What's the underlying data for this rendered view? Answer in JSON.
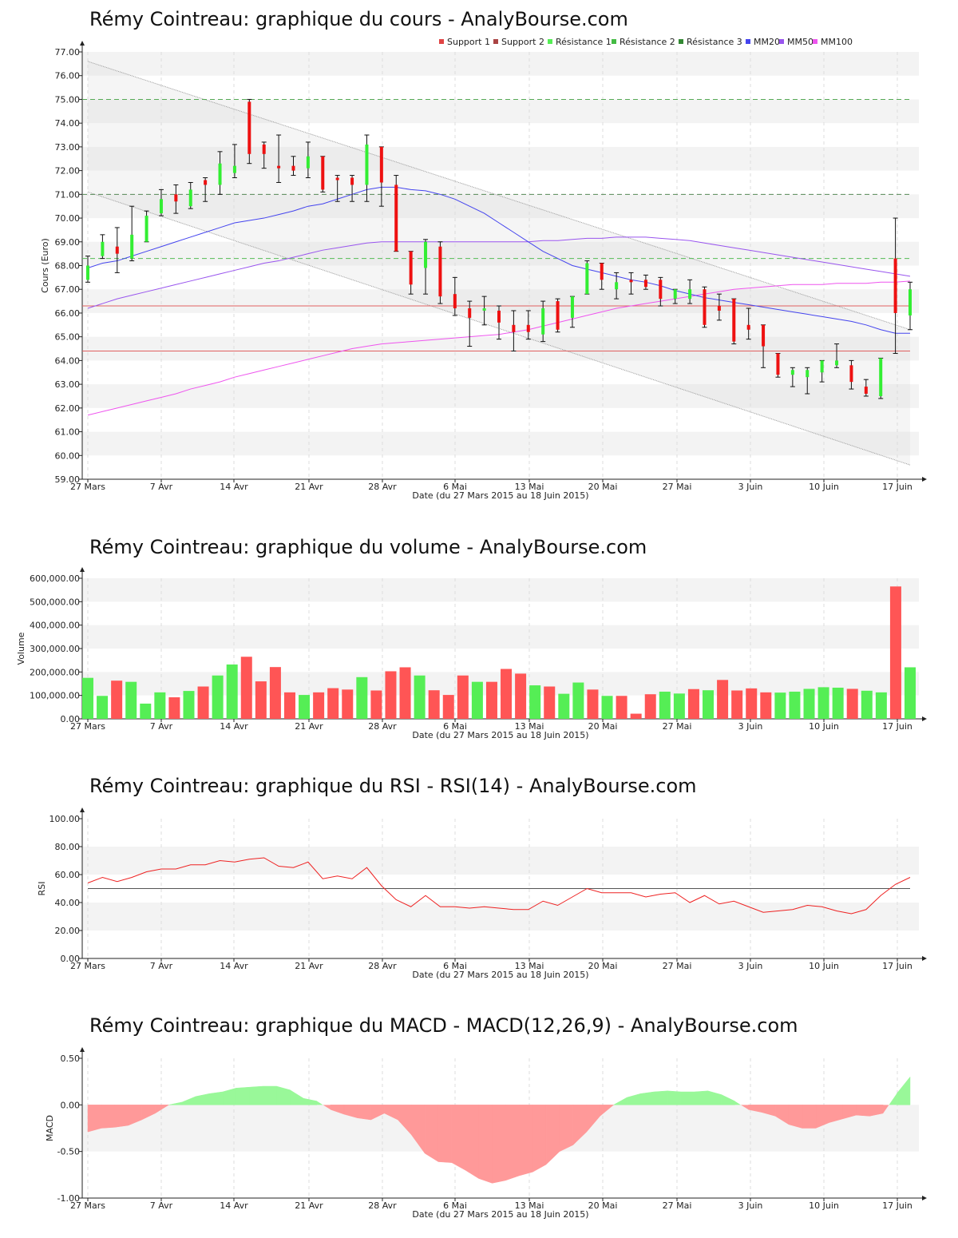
{
  "x_axis": {
    "tick_labels": [
      "27 Mars",
      "7 Avr",
      "14 Avr",
      "21 Avr",
      "28 Avr",
      "6 Mai",
      "13 Mai",
      "20 Mai",
      "27 Mai",
      "3 Juin",
      "10 Juin",
      "17 Juin"
    ],
    "label": "Date (du 27 Mars 2015 au 18 Juin 2015)"
  },
  "colors": {
    "up": "#33ee33",
    "down": "#ee1111",
    "volume_up": "#55ee55",
    "volume_down": "#ff5555",
    "support": "#e06060",
    "resistance": "#55aa55",
    "mm20": "#4444ee",
    "mm50": "#9955ee",
    "mm100": "#ee55ee",
    "rsi_line": "#ee2222",
    "macd_pos": "#99f899",
    "macd_neg": "#ff9999"
  },
  "chart_data": [
    {
      "type": "candlestick",
      "title": "Rémy Cointreau: graphique du cours - AnalyBourse.com",
      "xlabel": "Date (du 27 Mars 2015 au 18 Juin 2015)",
      "ylabel": "Cours (Euro)",
      "ylim": [
        59,
        77
      ],
      "y_ticks": [
        "59.00",
        "60.00",
        "61.00",
        "62.00",
        "63.00",
        "64.00",
        "65.00",
        "66.00",
        "67.00",
        "68.00",
        "69.00",
        "70.00",
        "71.00",
        "72.00",
        "73.00",
        "74.00",
        "75.00",
        "76.00",
        "77.00"
      ],
      "legend": [
        {
          "label": "Support 1",
          "color": "#e04444"
        },
        {
          "label": "Support 2",
          "color": "#aa4444"
        },
        {
          "label": "Résistance 1",
          "color": "#55ee55"
        },
        {
          "label": "Résistance 2",
          "color": "#44bb44"
        },
        {
          "label": "Résistance 3",
          "color": "#338833"
        },
        {
          "label": "MM20",
          "color": "#4444ee"
        },
        {
          "label": "MM50",
          "color": "#9955ee"
        },
        {
          "label": "MM100",
          "color": "#ee55ee"
        }
      ],
      "legend_position": "top-right",
      "levels": {
        "support_1": 66.3,
        "support_2": 64.4,
        "resistance_1": 68.3,
        "resistance_2": 71.0,
        "resistance_3": 75.0
      },
      "candles": [
        {
          "o": 67.4,
          "h": 68.4,
          "l": 67.3,
          "c": 68.0
        },
        {
          "o": 68.4,
          "h": 69.3,
          "l": 68.3,
          "c": 69.0
        },
        {
          "o": 68.8,
          "h": 69.6,
          "l": 67.7,
          "c": 68.5
        },
        {
          "o": 68.3,
          "h": 70.5,
          "l": 68.2,
          "c": 69.3
        },
        {
          "o": 69.0,
          "h": 70.3,
          "l": 69.0,
          "c": 70.1
        },
        {
          "o": 70.2,
          "h": 71.2,
          "l": 70.1,
          "c": 70.8
        },
        {
          "o": 71.0,
          "h": 71.4,
          "l": 70.2,
          "c": 70.7
        },
        {
          "o": 70.5,
          "h": 71.5,
          "l": 70.4,
          "c": 71.2
        },
        {
          "o": 71.6,
          "h": 71.7,
          "l": 70.7,
          "c": 71.4
        },
        {
          "o": 71.4,
          "h": 72.8,
          "l": 71.0,
          "c": 72.3
        },
        {
          "o": 71.9,
          "h": 73.1,
          "l": 71.7,
          "c": 72.2
        },
        {
          "o": 74.9,
          "h": 75.0,
          "l": 72.3,
          "c": 72.7
        },
        {
          "o": 73.1,
          "h": 73.2,
          "l": 72.1,
          "c": 72.7
        },
        {
          "o": 72.2,
          "h": 73.5,
          "l": 71.5,
          "c": 72.1
        },
        {
          "o": 72.2,
          "h": 72.6,
          "l": 71.8,
          "c": 72.0
        },
        {
          "o": 72.1,
          "h": 73.2,
          "l": 71.7,
          "c": 72.6
        },
        {
          "o": 72.6,
          "h": 72.6,
          "l": 71.1,
          "c": 71.2
        },
        {
          "o": 71.7,
          "h": 71.8,
          "l": 70.7,
          "c": 71.6
        },
        {
          "o": 71.7,
          "h": 71.8,
          "l": 70.7,
          "c": 71.4
        },
        {
          "o": 71.4,
          "h": 73.5,
          "l": 70.7,
          "c": 73.1
        },
        {
          "o": 73.0,
          "h": 73.0,
          "l": 70.5,
          "c": 71.5
        },
        {
          "o": 71.4,
          "h": 71.8,
          "l": 68.6,
          "c": 68.6
        },
        {
          "o": 68.6,
          "h": 68.6,
          "l": 66.8,
          "c": 67.2
        },
        {
          "o": 67.9,
          "h": 69.1,
          "l": 66.8,
          "c": 69.0
        },
        {
          "o": 68.8,
          "h": 69.0,
          "l": 66.4,
          "c": 66.7
        },
        {
          "o": 66.8,
          "h": 67.5,
          "l": 65.9,
          "c": 66.2
        },
        {
          "o": 66.2,
          "h": 66.5,
          "l": 64.6,
          "c": 65.8
        },
        {
          "o": 66.1,
          "h": 66.7,
          "l": 65.5,
          "c": 66.2
        },
        {
          "o": 66.1,
          "h": 66.3,
          "l": 64.9,
          "c": 65.6
        },
        {
          "o": 65.5,
          "h": 66.1,
          "l": 64.4,
          "c": 65.2
        },
        {
          "o": 65.5,
          "h": 66.1,
          "l": 64.9,
          "c": 65.2
        },
        {
          "o": 65.1,
          "h": 66.5,
          "l": 64.8,
          "c": 66.2
        },
        {
          "o": 66.5,
          "h": 66.6,
          "l": 65.2,
          "c": 65.3
        },
        {
          "o": 65.8,
          "h": 66.7,
          "l": 65.4,
          "c": 66.7
        },
        {
          "o": 66.8,
          "h": 68.2,
          "l": 66.8,
          "c": 68.1
        },
        {
          "o": 68.1,
          "h": 68.1,
          "l": 67.0,
          "c": 67.4
        },
        {
          "o": 67.0,
          "h": 67.7,
          "l": 66.6,
          "c": 67.3
        },
        {
          "o": 67.4,
          "h": 67.7,
          "l": 66.8,
          "c": 67.3
        },
        {
          "o": 67.4,
          "h": 67.6,
          "l": 67.0,
          "c": 67.1
        },
        {
          "o": 67.4,
          "h": 67.5,
          "l": 66.3,
          "c": 66.6
        },
        {
          "o": 66.6,
          "h": 67.0,
          "l": 66.4,
          "c": 67.0
        },
        {
          "o": 66.6,
          "h": 67.4,
          "l": 66.4,
          "c": 67.0
        },
        {
          "o": 67.0,
          "h": 67.1,
          "l": 65.4,
          "c": 65.5
        },
        {
          "o": 66.3,
          "h": 66.8,
          "l": 65.7,
          "c": 66.1
        },
        {
          "o": 66.6,
          "h": 66.6,
          "l": 64.7,
          "c": 64.8
        },
        {
          "o": 65.5,
          "h": 66.2,
          "l": 64.9,
          "c": 65.3
        },
        {
          "o": 65.5,
          "h": 65.5,
          "l": 63.7,
          "c": 64.6
        },
        {
          "o": 64.3,
          "h": 64.3,
          "l": 63.3,
          "c": 63.4
        },
        {
          "o": 63.4,
          "h": 63.7,
          "l": 62.9,
          "c": 63.6
        },
        {
          "o": 63.3,
          "h": 63.7,
          "l": 62.6,
          "c": 63.6
        },
        {
          "o": 63.5,
          "h": 64.0,
          "l": 63.1,
          "c": 64.0
        },
        {
          "o": 63.8,
          "h": 64.7,
          "l": 63.7,
          "c": 64.0
        },
        {
          "o": 63.8,
          "h": 64.0,
          "l": 62.8,
          "c": 63.1
        },
        {
          "o": 62.9,
          "h": 63.2,
          "l": 62.5,
          "c": 62.6
        },
        {
          "o": 62.5,
          "h": 64.1,
          "l": 62.4,
          "c": 64.1
        },
        {
          "o": 68.3,
          "h": 70.0,
          "l": 64.3,
          "c": 66.0
        },
        {
          "o": 65.9,
          "h": 67.3,
          "l": 65.3,
          "c": 67.0
        }
      ],
      "mm20": [
        67.9,
        68.1,
        68.2,
        68.4,
        68.6,
        68.8,
        69.0,
        69.2,
        69.4,
        69.6,
        69.8,
        69.9,
        70.0,
        70.15,
        70.3,
        70.5,
        70.6,
        70.8,
        71.0,
        71.2,
        71.3,
        71.3,
        71.2,
        71.15,
        71.0,
        70.8,
        70.5,
        70.2,
        69.8,
        69.4,
        69.0,
        68.6,
        68.3,
        68.0,
        67.85,
        67.7,
        67.55,
        67.4,
        67.3,
        67.15,
        66.95,
        66.8,
        66.65,
        66.55,
        66.45,
        66.35,
        66.25,
        66.15,
        66.05,
        65.95,
        65.85,
        65.75,
        65.65,
        65.5,
        65.3,
        65.15,
        65.15
      ],
      "mm50": [
        66.2,
        66.4,
        66.6,
        66.75,
        66.9,
        67.05,
        67.2,
        67.35,
        67.5,
        67.65,
        67.8,
        67.95,
        68.1,
        68.2,
        68.35,
        68.5,
        68.65,
        68.75,
        68.85,
        68.95,
        69.0,
        69.0,
        69.0,
        69.0,
        69.0,
        69.0,
        69.0,
        69.0,
        69.0,
        69.0,
        69.0,
        69.05,
        69.05,
        69.1,
        69.15,
        69.15,
        69.2,
        69.2,
        69.2,
        69.15,
        69.1,
        69.05,
        68.95,
        68.85,
        68.75,
        68.65,
        68.55,
        68.45,
        68.35,
        68.25,
        68.15,
        68.05,
        67.95,
        67.85,
        67.75,
        67.65,
        67.55
      ],
      "mm100": [
        61.7,
        61.85,
        62.0,
        62.15,
        62.3,
        62.45,
        62.6,
        62.8,
        62.95,
        63.1,
        63.3,
        63.45,
        63.6,
        63.75,
        63.9,
        64.05,
        64.2,
        64.35,
        64.5,
        64.6,
        64.7,
        64.75,
        64.8,
        64.85,
        64.9,
        64.95,
        65.0,
        65.05,
        65.1,
        65.2,
        65.3,
        65.45,
        65.6,
        65.75,
        65.9,
        66.05,
        66.2,
        66.3,
        66.4,
        66.5,
        66.6,
        66.7,
        66.8,
        66.9,
        67.0,
        67.05,
        67.1,
        67.15,
        67.2,
        67.2,
        67.2,
        67.25,
        67.25,
        67.25,
        67.3,
        67.3,
        67.35
      ],
      "trend_channel": {
        "upper": [
          [
            0,
            76.6
          ],
          [
            57,
            65.3
          ]
        ],
        "lower": [
          [
            0,
            71.1
          ],
          [
            57,
            59.6
          ]
        ]
      }
    },
    {
      "type": "bar",
      "title": "Rémy Cointreau: graphique du volume - AnalyBourse.com",
      "xlabel": "Date (du 27 Mars 2015 au 18 Juin 2015)",
      "ylabel": "Volume",
      "ylim": [
        0,
        600000
      ],
      "y_ticks": [
        "0.00",
        "100,000.00",
        "200,000.00",
        "300,000.00",
        "400,000.00",
        "500,000.00",
        "600,000.00"
      ],
      "values": [
        175000,
        98000,
        163000,
        158000,
        65000,
        113000,
        92000,
        119000,
        138000,
        185000,
        232000,
        265000,
        160000,
        221000,
        113000,
        102000,
        113000,
        131000,
        125000,
        178000,
        121000,
        203000,
        220000,
        185000,
        122000,
        102000,
        185000,
        158000,
        158000,
        213000,
        193000,
        143000,
        138000,
        107000,
        155000,
        125000,
        98000,
        98000,
        22000,
        105000,
        116000,
        108000,
        127000,
        122000,
        166000,
        121000,
        130000,
        113000,
        112000,
        116000,
        128000,
        135000,
        133000,
        128000,
        120000,
        113000,
        565000,
        220000
      ],
      "up": [
        true,
        true,
        false,
        true,
        true,
        true,
        false,
        true,
        false,
        true,
        true,
        false,
        false,
        false,
        false,
        true,
        false,
        false,
        false,
        true,
        false,
        false,
        false,
        true,
        false,
        false,
        false,
        true,
        false,
        false,
        false,
        true,
        false,
        true,
        true,
        false,
        true,
        false,
        false,
        false,
        true,
        true,
        false,
        true,
        false,
        false,
        false,
        false,
        true,
        true,
        true,
        true,
        true,
        false,
        true,
        true,
        false,
        true
      ]
    },
    {
      "type": "line",
      "title": "Rémy Cointreau: graphique du RSI - RSI(14) - AnalyBourse.com",
      "xlabel": "Date (du 27 Mars 2015 au 18 Juin 2015)",
      "ylabel": "RSI",
      "ylim": [
        0,
        100
      ],
      "y_ticks": [
        "0.00",
        "20.00",
        "40.00",
        "60.00",
        "80.00",
        "100.00"
      ],
      "reference_line": 50,
      "values": [
        54,
        58,
        55,
        58,
        62,
        64,
        64,
        67,
        67,
        70,
        69,
        71,
        72,
        66,
        65,
        69,
        57,
        59,
        57,
        65,
        52,
        42,
        37,
        45,
        37,
        37,
        36,
        37,
        36,
        35,
        35,
        41,
        38,
        44,
        50,
        47,
        47,
        47,
        44,
        46,
        47,
        40,
        45,
        39,
        41,
        37,
        33,
        34,
        35,
        38,
        37,
        34,
        32,
        35,
        45,
        53,
        58
      ]
    },
    {
      "type": "area",
      "title": "Rémy Cointreau: graphique du MACD - MACD(12,26,9) - AnalyBourse.com",
      "xlabel": "Date (du 27 Mars 2015 au 18 Juin 2015)",
      "ylabel": "MACD",
      "ylim": [
        -1,
        0.5
      ],
      "y_ticks": [
        "-1.00",
        "-0.50",
        "0.00",
        "0.50"
      ],
      "values": [
        -0.29,
        -0.25,
        -0.24,
        -0.22,
        -0.16,
        -0.09,
        0.0,
        0.03,
        0.09,
        0.12,
        0.14,
        0.18,
        0.19,
        0.2,
        0.2,
        0.16,
        0.07,
        0.04,
        -0.05,
        -0.1,
        -0.14,
        -0.16,
        -0.09,
        -0.16,
        -0.32,
        -0.52,
        -0.61,
        -0.62,
        -0.7,
        -0.79,
        -0.84,
        -0.81,
        -0.76,
        -0.72,
        -0.64,
        -0.5,
        -0.43,
        -0.29,
        -0.12,
        0.0,
        0.08,
        0.12,
        0.14,
        0.15,
        0.14,
        0.14,
        0.15,
        0.11,
        0.04,
        -0.05,
        -0.08,
        -0.12,
        -0.21,
        -0.25,
        -0.25,
        -0.19,
        -0.15,
        -0.11,
        -0.12,
        -0.09,
        0.12,
        0.3
      ]
    }
  ]
}
